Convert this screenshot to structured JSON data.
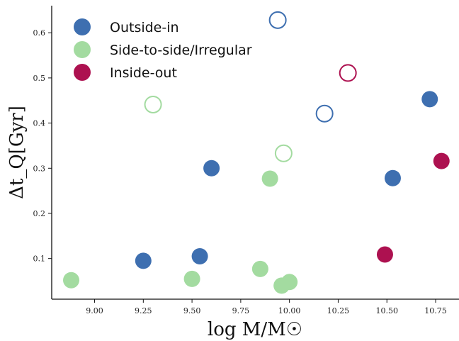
{
  "chart_data": {
    "type": "scatter",
    "xlabel": "log M/M☉",
    "ylabel": "Δt_Q[Gyr]",
    "xlim": [
      8.78,
      10.87
    ],
    "ylim": [
      0.01,
      0.66
    ],
    "x_ticks": [
      "9.00",
      "9.25",
      "9.50",
      "9.75",
      "10.00",
      "10.25",
      "10.50",
      "10.75"
    ],
    "y_ticks": [
      "0.1",
      "0.2",
      "0.3",
      "0.4",
      "0.5",
      "0.6"
    ],
    "legend_position": "top-left",
    "series": [
      {
        "name": "Outside-in",
        "color": "#3e6fb0",
        "filled": [
          [
            9.25,
            0.095
          ],
          [
            9.54,
            0.105
          ],
          [
            9.6,
            0.3
          ],
          [
            10.53,
            0.278
          ],
          [
            10.72,
            0.453
          ]
        ],
        "open": [
          [
            9.94,
            0.628
          ],
          [
            10.18,
            0.421
          ]
        ]
      },
      {
        "name": "Side-to-side/Irregular",
        "color": "#a3dba0",
        "filled": [
          [
            8.88,
            0.052
          ],
          [
            9.5,
            0.055
          ],
          [
            9.85,
            0.077
          ],
          [
            9.9,
            0.277
          ],
          [
            9.96,
            0.04
          ],
          [
            10.0,
            0.048
          ]
        ],
        "open": [
          [
            9.3,
            0.441
          ],
          [
            9.97,
            0.333
          ]
        ]
      },
      {
        "name": "Inside-out",
        "color": "#ad1150",
        "filled": [
          [
            10.49,
            0.109
          ],
          [
            10.78,
            0.316
          ]
        ],
        "open": [
          [
            10.3,
            0.511
          ]
        ]
      }
    ]
  }
}
